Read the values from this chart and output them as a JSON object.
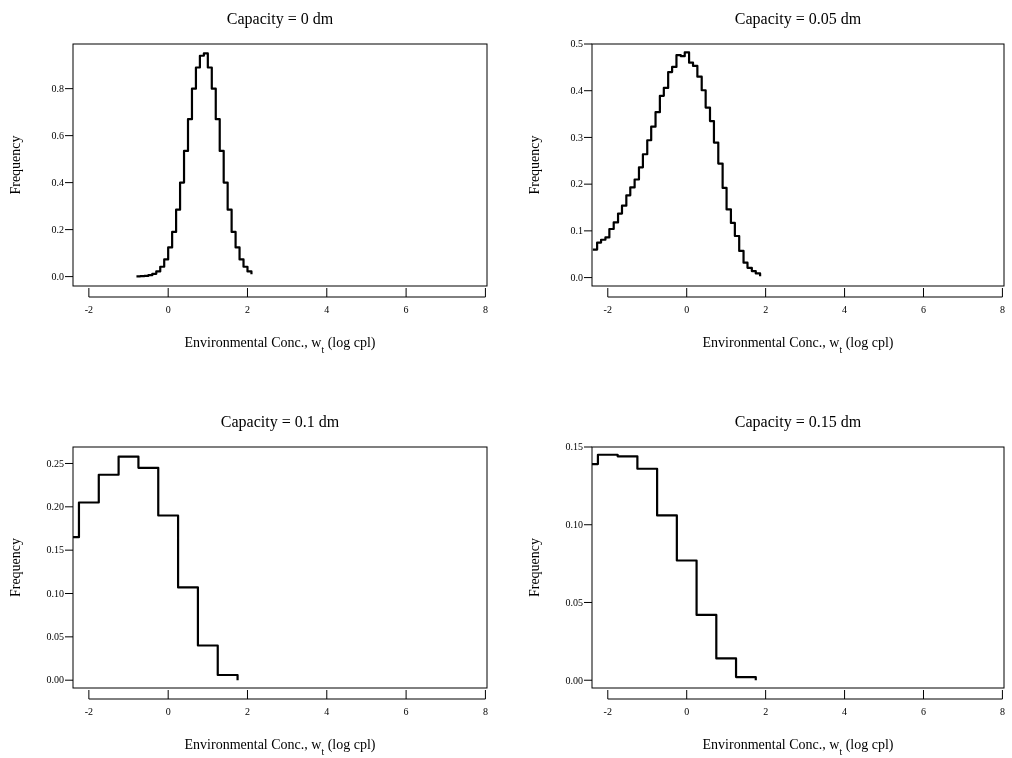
{
  "chart_data": [
    {
      "type": "step",
      "title": "Capacity =  0 dm",
      "xlabel": "Environmental Conc., w$_{t}$ (log cpl)",
      "ylabel": "Frequency",
      "xlim": [
        -2.4,
        8.04
      ],
      "xticks": [
        -2,
        0,
        2,
        4,
        6,
        8
      ],
      "ylim": [
        -0.04,
        0.99
      ],
      "yticks": [
        {
          "value": 0,
          "label": "0.0"
        },
        {
          "value": 0.2,
          "label": "0.2"
        },
        {
          "value": 0.4,
          "label": "0.4"
        },
        {
          "value": 0.6,
          "label": "0.6"
        },
        {
          "value": 0.8,
          "label": "0.8"
        }
      ],
      "color": "#000000",
      "grid": false,
      "x": [
        -0.8,
        -0.7,
        -0.6,
        -0.5,
        -0.4,
        -0.3,
        -0.2,
        -0.1,
        0,
        0.1,
        0.2,
        0.3,
        0.4,
        0.5,
        0.6,
        0.7,
        0.8,
        0.9,
        1.0,
        1.1,
        1.2,
        1.3,
        1.4,
        1.5,
        1.6,
        1.7,
        1.8,
        1.9,
        2.0,
        2.1
      ],
      "values": [
        0.001,
        0.002,
        0.003,
        0.006,
        0.012,
        0.022,
        0.042,
        0.073,
        0.124,
        0.19,
        0.285,
        0.4,
        0.535,
        0.67,
        0.8,
        0.89,
        0.94,
        0.95,
        0.89,
        0.8,
        0.67,
        0.535,
        0.4,
        0.285,
        0.19,
        0.124,
        0.073,
        0.042,
        0.022,
        0.01
      ]
    },
    {
      "type": "step",
      "title": "Capacity =  0.05 dm",
      "xlabel": "Environmental Conc., w$_{t}$ (log cpl)",
      "ylabel": "Frequency",
      "xlim": [
        -2.4,
        8.04
      ],
      "xticks": [
        -2,
        0,
        2,
        4,
        6,
        8
      ],
      "ylim": [
        -0.018,
        0.5
      ],
      "yticks": [
        {
          "value": 0,
          "label": "0.0"
        },
        {
          "value": 0.1,
          "label": "0.1"
        },
        {
          "value": 0.2,
          "label": "0.2"
        },
        {
          "value": 0.3,
          "label": "0.3"
        },
        {
          "value": 0.4,
          "label": "0.4"
        },
        {
          "value": 0.5,
          "label": "0.5"
        }
      ],
      "color": "#000000",
      "grid": false,
      "x": [
        -2.38,
        -2.27,
        -2.17,
        -2.06,
        -1.96,
        -1.85,
        -1.74,
        -1.64,
        -1.53,
        -1.43,
        -1.32,
        -1.21,
        -1.11,
        -1.0,
        -0.9,
        -0.79,
        -0.68,
        -0.58,
        -0.47,
        -0.37,
        -0.26,
        -0.15,
        -0.05,
        0.06,
        0.16,
        0.27,
        0.38,
        0.48,
        0.59,
        0.69,
        0.8,
        0.91,
        1.01,
        1.12,
        1.22,
        1.33,
        1.44,
        1.54,
        1.65,
        1.75,
        1.86
      ],
      "values": [
        0.06,
        0.075,
        0.081,
        0.086,
        0.104,
        0.118,
        0.137,
        0.154,
        0.176,
        0.193,
        0.21,
        0.236,
        0.264,
        0.294,
        0.323,
        0.354,
        0.389,
        0.406,
        0.44,
        0.451,
        0.476,
        0.474,
        0.482,
        0.46,
        0.453,
        0.43,
        0.401,
        0.364,
        0.335,
        0.289,
        0.244,
        0.192,
        0.146,
        0.117,
        0.089,
        0.057,
        0.032,
        0.021,
        0.014,
        0.009,
        0.003
      ]
    },
    {
      "type": "step",
      "title": "Capacity =  0.1 dm",
      "xlabel": "Environmental Conc., w$_{t}$ (log cpl)",
      "ylabel": "Frequency",
      "xlim": [
        -2.4,
        8.04
      ],
      "xticks": [
        -2,
        0,
        2,
        4,
        6,
        8
      ],
      "ylim": [
        -0.009,
        0.269
      ],
      "yticks": [
        {
          "value": 0,
          "label": "0.00"
        },
        {
          "value": 0.05,
          "label": "0.05"
        },
        {
          "value": 0.1,
          "label": "0.10"
        },
        {
          "value": 0.15,
          "label": "0.15"
        },
        {
          "value": 0.2,
          "label": "0.20"
        },
        {
          "value": 0.25,
          "label": "0.25"
        }
      ],
      "color": "#000000",
      "grid": false,
      "x": [
        -2.4,
        -2.25,
        -1.75,
        -1.25,
        -0.75,
        -0.25,
        0.25,
        0.75,
        1.25,
        1.75
      ],
      "values": [
        0.165,
        0.205,
        0.237,
        0.258,
        0.245,
        0.19,
        0.107,
        0.04,
        0.006,
        0
      ]
    },
    {
      "type": "step",
      "title": "Capacity =  0.15 dm",
      "xlabel": "Environmental Conc., w$_{t}$ (log cpl)",
      "ylabel": "Frequency",
      "xlim": [
        -2.4,
        8.04
      ],
      "xticks": [
        -2,
        0,
        2,
        4,
        6,
        8
      ],
      "ylim": [
        -0.005,
        0.15
      ],
      "yticks": [
        {
          "value": 0,
          "label": "0.00"
        },
        {
          "value": 0.05,
          "label": "0.05"
        },
        {
          "value": 0.1,
          "label": "0.10"
        },
        {
          "value": 0.15,
          "label": "0.15"
        }
      ],
      "color": "#000000",
      "grid": false,
      "x": [
        -2.4,
        -2.25,
        -1.75,
        -1.25,
        -0.75,
        -0.25,
        0.25,
        0.75,
        1.25,
        1.75
      ],
      "values": [
        0.139,
        0.145,
        0.144,
        0.136,
        0.106,
        0.077,
        0.042,
        0.014,
        0.002,
        0
      ]
    }
  ]
}
